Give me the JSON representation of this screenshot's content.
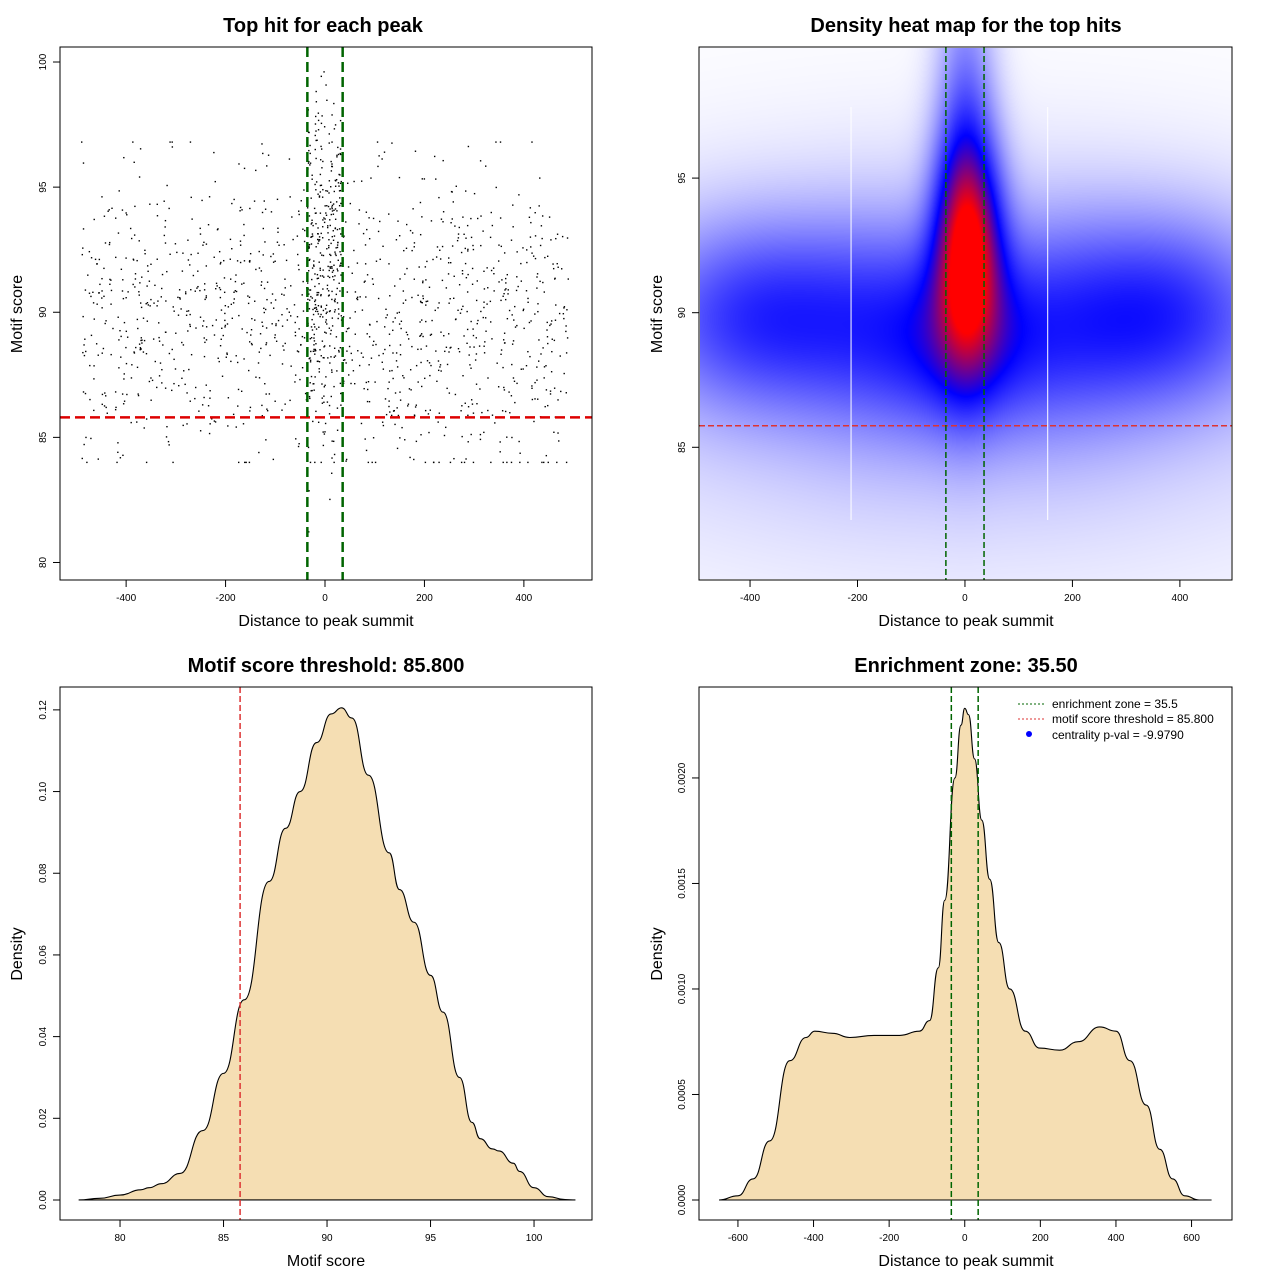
{
  "chart_data": [
    {
      "type": "scatter",
      "title": "Top hit for each peak",
      "xlabel": "Distance to peak summit",
      "ylabel": "Motif score",
      "xlim": [
        -533,
        537
      ],
      "ylim": [
        79.3,
        100.6
      ],
      "xticks": [
        -400,
        -200,
        0,
        200,
        400
      ],
      "yticks": [
        80,
        85,
        90,
        95,
        100
      ],
      "hlines": [
        {
          "y": 85.8,
          "color": "#dd0000",
          "style": "dashed"
        }
      ],
      "vlines": [
        {
          "x": -35.5,
          "color": "#006400",
          "style": "dashed"
        },
        {
          "x": 35.5,
          "color": "#006400",
          "style": "dashed"
        }
      ],
      "points_summary": {
        "background": {
          "n": 1250,
          "x_range": [
            -490,
            490
          ],
          "y_mean": 89.6,
          "y_sd": 3.0
        },
        "central": {
          "n": 330,
          "x_range": [
            -35,
            35
          ],
          "y_mean": 92.2,
          "y_sd": 3.3
        }
      }
    },
    {
      "type": "heatmap",
      "title": "Density heat map for the top hits",
      "xlabel": "Distance to peak summit",
      "ylabel": "Motif score",
      "xlim": [
        -495,
        497
      ],
      "ylim": [
        80.07,
        99.87
      ],
      "xticks": [
        -400,
        -200,
        0,
        200,
        400
      ],
      "yticks": [
        85,
        90,
        95
      ],
      "colors": [
        "#ffffff",
        "#0000ff",
        "#ff0000"
      ],
      "density_components": [
        {
          "x": 5,
          "y": 92.5,
          "sx": 42,
          "sy": 2.6,
          "w": 1.0
        },
        {
          "x": 0,
          "y": 95.5,
          "sx": 35,
          "sy": 4.5,
          "w": 0.35
        },
        {
          "x": -390,
          "y": 89.9,
          "sx": 140,
          "sy": 2.3,
          "w": 0.42
        },
        {
          "x": 380,
          "y": 90.0,
          "sx": 130,
          "sy": 2.3,
          "w": 0.42
        },
        {
          "x": -150,
          "y": 89.5,
          "sx": 120,
          "sy": 2.6,
          "w": 0.3
        },
        {
          "x": 170,
          "y": 89.5,
          "sx": 120,
          "sy": 2.6,
          "w": 0.3
        },
        {
          "x": 0,
          "y": 89.0,
          "sx": 90,
          "sy": 2.2,
          "w": 0.35
        },
        {
          "x": 0,
          "y": 88,
          "sx": 500,
          "sy": 4.5,
          "w": 0.12
        }
      ],
      "white_lines_x": [
        -212,
        154
      ],
      "hlines": [
        {
          "y": 85.8,
          "color": "#dd3333",
          "style": "dashed"
        }
      ],
      "vlines": [
        {
          "x": -35.5,
          "color": "#006400",
          "style": "dashed"
        },
        {
          "x": 35.5,
          "color": "#006400",
          "style": "dashed"
        }
      ]
    },
    {
      "type": "area",
      "title": "Motif score threshold: 85.800",
      "xlabel": "Motif score",
      "ylabel": "Density",
      "xlim": [
        77.1,
        102.8
      ],
      "ylim": [
        -0.0049,
        0.1256
      ],
      "xticks": [
        80,
        85,
        90,
        95,
        100
      ],
      "yticks": [
        0,
        0.02,
        0.04,
        0.06,
        0.08,
        0.1,
        0.12
      ],
      "ytick_labels": [
        "0.00",
        "0.02",
        "0.04",
        "0.06",
        "0.08",
        "0.10",
        "0.12"
      ],
      "fill": "#f5deb3",
      "x": [
        78,
        79,
        80,
        81,
        81.4,
        82,
        82.9,
        84,
        85,
        86,
        87.2,
        88,
        88.7,
        89.5,
        90.2,
        90.7,
        91.2,
        92,
        93,
        93.5,
        94.2,
        95,
        95.6,
        96.4,
        97,
        97.4,
        98,
        98.3,
        99,
        99.3,
        100,
        100.7,
        101.5,
        102
      ],
      "y": [
        0,
        0.0004,
        0.0012,
        0.0025,
        0.003,
        0.004,
        0.0065,
        0.017,
        0.031,
        0.049,
        0.078,
        0.091,
        0.1,
        0.112,
        0.119,
        0.1205,
        0.118,
        0.104,
        0.085,
        0.076,
        0.068,
        0.055,
        0.046,
        0.03,
        0.019,
        0.015,
        0.0125,
        0.012,
        0.009,
        0.007,
        0.003,
        0.0008,
        0.0001,
        0
      ],
      "vlines": [
        {
          "x": 85.8,
          "color": "#dd3333",
          "style": "dashed"
        }
      ]
    },
    {
      "type": "area",
      "title": "Enrichment zone: 35.50",
      "xlabel": "Distance to peak summit",
      "ylabel": "Density",
      "xlim": [
        -703,
        707
      ],
      "ylim": [
        -9.48e-05,
        0.002431
      ],
      "xticks": [
        -600,
        -400,
        -200,
        0,
        200,
        400,
        600
      ],
      "yticks": [
        0,
        0.0005,
        0.001,
        0.0015,
        0.002
      ],
      "ytick_labels": [
        "0.0000",
        "0.0005",
        "0.0010",
        "0.0015",
        "0.0020"
      ],
      "fill": "#f5deb3",
      "x": [
        -650,
        -600,
        -560,
        -516,
        -463,
        -420,
        -397,
        -350,
        -304,
        -240,
        -172,
        -120,
        -93,
        -70,
        -53,
        -26,
        -10,
        0,
        10,
        26,
        45,
        66,
        90,
        119,
        160,
        198,
        251,
        300,
        357,
        400,
        437,
        480,
        516,
        550,
        582,
        620,
        653
      ],
      "y": [
        0,
        2e-05,
        0.0001,
        0.00028,
        0.00066,
        0.00077,
        0.0008,
        0.00079,
        0.00077,
        0.00078,
        0.00078,
        0.0008,
        0.00085,
        0.0011,
        0.00142,
        0.002,
        0.00225,
        0.00233,
        0.0023,
        0.00209,
        0.0018,
        0.00152,
        0.00122,
        0.001,
        0.0008,
        0.00072,
        0.00071,
        0.00075,
        0.00082,
        0.0008,
        0.00066,
        0.00045,
        0.00024,
        0.0001,
        2e-05,
        0,
        0
      ],
      "vlines": [
        {
          "x": -35.5,
          "color": "#006400",
          "style": "dashed"
        },
        {
          "x": 35.5,
          "color": "#006400",
          "style": "dashed"
        }
      ],
      "legend": {
        "placement": "top-right",
        "entries": [
          {
            "label": "enrichment zone = 35.5",
            "color": "#006400",
            "symbol": "dotted-line"
          },
          {
            "label": "motif score threshold = 85.800",
            "color": "#dd3333",
            "symbol": "dotted-line"
          },
          {
            "label": "centrality p-val = -9.9790",
            "color": "#0000ff",
            "symbol": "dot"
          }
        ]
      }
    }
  ]
}
